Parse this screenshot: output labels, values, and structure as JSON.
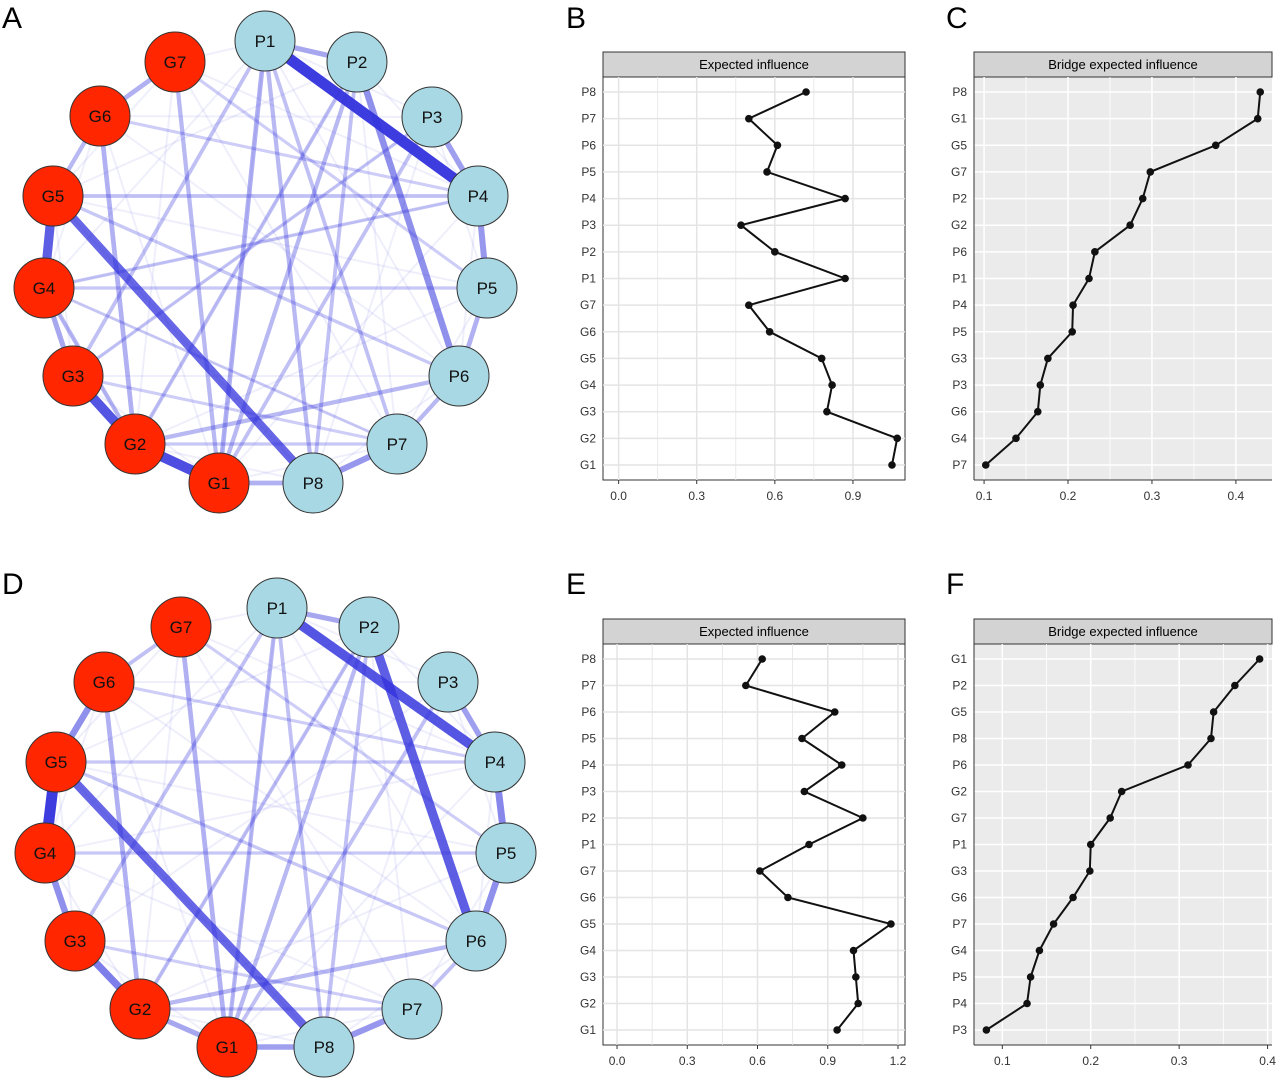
{
  "panel_labels": [
    "A",
    "B",
    "C",
    "D",
    "E",
    "F"
  ],
  "colors": {
    "G_node": "#ff2600",
    "P_node": "#a8d8e3",
    "edge": "#3333dd",
    "strip": "#d3d3d3",
    "panel_bg_bridge": "#ebebeb"
  },
  "chart_data": [
    {
      "type": "network",
      "panel": "A",
      "nodes": [
        "P1",
        "P2",
        "P3",
        "P4",
        "P5",
        "P6",
        "P7",
        "P8",
        "G1",
        "G2",
        "G3",
        "G4",
        "G5",
        "G6",
        "G7"
      ],
      "edges": [
        [
          "P1",
          "P4",
          1.0
        ],
        [
          "G1",
          "G2",
          0.9
        ],
        [
          "G2",
          "G3",
          0.85
        ],
        [
          "G4",
          "G5",
          0.8
        ],
        [
          "G5",
          "P8",
          0.75
        ],
        [
          "P2",
          "P6",
          0.5
        ],
        [
          "P4",
          "P5",
          0.45
        ],
        [
          "P7",
          "P8",
          0.45
        ],
        [
          "P3",
          "P4",
          0.4
        ],
        [
          "P1",
          "P2",
          0.35
        ],
        [
          "G3",
          "G4",
          0.35
        ],
        [
          "G6",
          "G2",
          0.3
        ],
        [
          "G7",
          "G6",
          0.3
        ],
        [
          "G1",
          "P8",
          0.3
        ],
        [
          "P1",
          "G1",
          0.3
        ],
        [
          "G7",
          "G1",
          0.25
        ],
        [
          "P2",
          "G1",
          0.25
        ],
        [
          "P5",
          "P6",
          0.3
        ],
        [
          "P6",
          "P7",
          0.25
        ],
        [
          "P1",
          "P8",
          0.25
        ],
        [
          "P6",
          "G2",
          0.25
        ],
        [
          "G5",
          "G6",
          0.25
        ],
        [
          "G4",
          "G2",
          0.25
        ],
        [
          "P4",
          "G5",
          0.2
        ],
        [
          "P3",
          "G1",
          0.2
        ],
        [
          "P2",
          "G2",
          0.2
        ],
        [
          "P4",
          "G4",
          0.15
        ],
        [
          "P5",
          "G4",
          0.15
        ],
        [
          "P6",
          "G5",
          0.15
        ],
        [
          "P1",
          "G3",
          0.2
        ],
        [
          "P3",
          "G3",
          0.15
        ],
        [
          "P7",
          "G2",
          0.15
        ],
        [
          "G6",
          "P4",
          0.12
        ],
        [
          "G7",
          "P5",
          0.12
        ],
        [
          "P1",
          "P7",
          0.2
        ],
        [
          "P2",
          "P8",
          0.2
        ],
        [
          "G3",
          "P7",
          0.12
        ],
        [
          "G4",
          "P7",
          0.1
        ]
      ]
    },
    {
      "type": "line",
      "panel": "B",
      "title": "Expected influence",
      "categories": [
        "P8",
        "P7",
        "P6",
        "P5",
        "P4",
        "P3",
        "P2",
        "P1",
        "G7",
        "G6",
        "G5",
        "G4",
        "G3",
        "G2",
        "G1"
      ],
      "values": [
        0.72,
        0.5,
        0.61,
        0.57,
        0.87,
        0.47,
        0.6,
        0.87,
        0.5,
        0.58,
        0.78,
        0.82,
        0.8,
        1.07,
        1.05
      ],
      "xticks": [
        "0.0",
        "0.3",
        "0.6",
        "0.9"
      ],
      "xlim": [
        -0.06,
        1.1
      ],
      "grid": true,
      "background": "white"
    },
    {
      "type": "line",
      "panel": "C",
      "title": "Bridge expected influence",
      "categories": [
        "P8",
        "G1",
        "G5",
        "G7",
        "P2",
        "G2",
        "P6",
        "P1",
        "P4",
        "P5",
        "G3",
        "P3",
        "G6",
        "G4",
        "P7"
      ],
      "values": [
        0.429,
        0.426,
        0.376,
        0.298,
        0.289,
        0.274,
        0.232,
        0.225,
        0.206,
        0.205,
        0.176,
        0.167,
        0.164,
        0.138,
        0.102
      ],
      "xticks": [
        "0.1",
        "0.2",
        "0.3",
        "0.4"
      ],
      "xlim": [
        0.088,
        0.443
      ],
      "grid": true,
      "background": "grey"
    },
    {
      "type": "network",
      "panel": "D",
      "nodes": [
        "P1",
        "P2",
        "P3",
        "P4",
        "P5",
        "P6",
        "P7",
        "P8",
        "G1",
        "G2",
        "G3",
        "G4",
        "G5",
        "G6",
        "G7"
      ],
      "edges": [
        [
          "G4",
          "G5",
          1.0
        ],
        [
          "P1",
          "P4",
          0.85
        ],
        [
          "P2",
          "P6",
          0.8
        ],
        [
          "G5",
          "P8",
          0.75
        ],
        [
          "G2",
          "G3",
          0.6
        ],
        [
          "G3",
          "G4",
          0.5
        ],
        [
          "G5",
          "G6",
          0.5
        ],
        [
          "P4",
          "P5",
          0.55
        ],
        [
          "P5",
          "P6",
          0.5
        ],
        [
          "P7",
          "P8",
          0.45
        ],
        [
          "G1",
          "P8",
          0.4
        ],
        [
          "P3",
          "P4",
          0.4
        ],
        [
          "P1",
          "P2",
          0.35
        ],
        [
          "G1",
          "G2",
          0.35
        ],
        [
          "G6",
          "G2",
          0.3
        ],
        [
          "G7",
          "G1",
          0.3
        ],
        [
          "P1",
          "G1",
          0.25
        ],
        [
          "P2",
          "G1",
          0.25
        ],
        [
          "P6",
          "G2",
          0.25
        ],
        [
          "P1",
          "P8",
          0.2
        ],
        [
          "P3",
          "G1",
          0.2
        ],
        [
          "P2",
          "G2",
          0.2
        ],
        [
          "G7",
          "G6",
          0.2
        ],
        [
          "P4",
          "G5",
          0.15
        ],
        [
          "P5",
          "G4",
          0.15
        ],
        [
          "P6",
          "G5",
          0.15
        ],
        [
          "P1",
          "G3",
          0.2
        ],
        [
          "P7",
          "G2",
          0.15
        ],
        [
          "G6",
          "P4",
          0.12
        ],
        [
          "G7",
          "P5",
          0.12
        ],
        [
          "P2",
          "P8",
          0.2
        ],
        [
          "G3",
          "P7",
          0.12
        ],
        [
          "P6",
          "P7",
          0.2
        ]
      ]
    },
    {
      "type": "line",
      "panel": "E",
      "title": "Expected influence",
      "categories": [
        "P8",
        "P7",
        "P6",
        "P5",
        "P4",
        "P3",
        "P2",
        "P1",
        "G7",
        "G6",
        "G5",
        "G4",
        "G3",
        "G2",
        "G1"
      ],
      "values": [
        0.62,
        0.55,
        0.93,
        0.79,
        0.96,
        0.8,
        1.05,
        0.82,
        0.61,
        0.73,
        1.17,
        1.01,
        1.02,
        1.03,
        0.94
      ],
      "xticks": [
        "0.0",
        "0.3",
        "0.6",
        "0.9",
        "1.2"
      ],
      "xlim": [
        -0.06,
        1.23
      ],
      "grid": true,
      "background": "white"
    },
    {
      "type": "line",
      "panel": "F",
      "title": "Bridge expected influence",
      "categories": [
        "G1",
        "P2",
        "G5",
        "P8",
        "P6",
        "G2",
        "G7",
        "P1",
        "G3",
        "G6",
        "P7",
        "G4",
        "P5",
        "P4",
        "P3"
      ],
      "values": [
        0.391,
        0.363,
        0.339,
        0.336,
        0.31,
        0.235,
        0.222,
        0.2,
        0.199,
        0.18,
        0.158,
        0.142,
        0.132,
        0.128,
        0.082
      ],
      "xticks": [
        "0.1",
        "0.2",
        "0.3",
        "0.4"
      ],
      "xlim": [
        0.068,
        0.405
      ],
      "grid": true,
      "background": "grey"
    }
  ]
}
